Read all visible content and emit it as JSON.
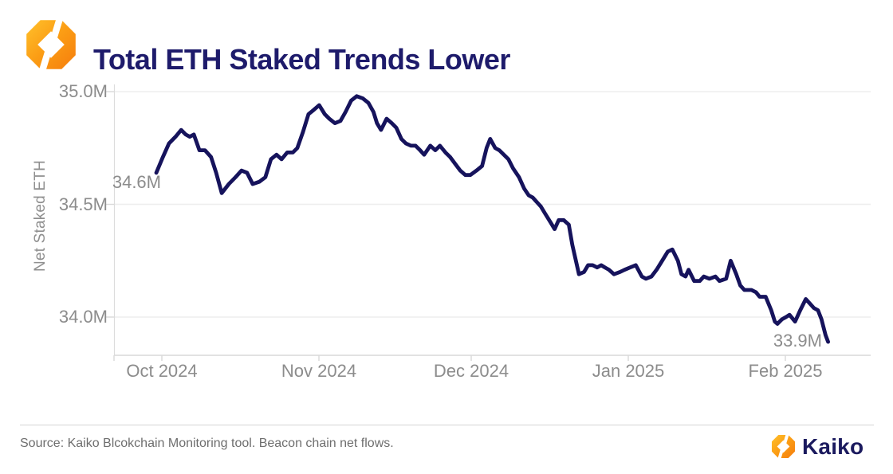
{
  "header": {
    "title": "Total ETH Staked Trends Lower"
  },
  "colors": {
    "title_navy": "#1e1b6b",
    "line_navy": "#16135c",
    "tick_gray": "#8c8c8c",
    "grid_gray": "#eeeeee",
    "axis_gray": "#d9d9d9",
    "brand_orange_light": "#FFC12B",
    "brand_orange_dark": "#F57D0D",
    "brand_navy": "#1b1a5e"
  },
  "chart_data": {
    "type": "line",
    "title": "Total ETH Staked Trends Lower",
    "xlabel": "",
    "ylabel": "Net Staked ETH",
    "x_unit": "days since 2024-09-30",
    "x_tick_labels": [
      "Oct 2024",
      "Nov 2024",
      "Dec 2024",
      "Jan 2025",
      "Feb 2025"
    ],
    "x_tick_days": [
      1,
      32,
      62,
      93,
      124
    ],
    "y_tick_labels": [
      "35.0M",
      "34.5M",
      "34.0M"
    ],
    "y_tick_values": [
      35.0,
      34.5,
      34.0
    ],
    "ylim": [
      33.83,
      35.03
    ],
    "grid": "horizontal",
    "legend": "none",
    "line_color": "#16135c",
    "annotations": [
      {
        "text": "34.6M",
        "day": 0,
        "value": 34.64,
        "position": "left-of-start"
      },
      {
        "text": "33.9M",
        "day": 132.4,
        "value": 33.89,
        "position": "below-left-of-end"
      }
    ],
    "series": [
      {
        "name": "Net Staked ETH (millions)",
        "points": [
          [
            0,
            34.64
          ],
          [
            1.3,
            34.71
          ],
          [
            2.5,
            34.77
          ],
          [
            3.8,
            34.8
          ],
          [
            4.9,
            34.83
          ],
          [
            5.8,
            34.81
          ],
          [
            6.6,
            34.8
          ],
          [
            7.4,
            34.81
          ],
          [
            8.5,
            34.74
          ],
          [
            9.6,
            34.74
          ],
          [
            10.8,
            34.71
          ],
          [
            11.8,
            34.64
          ],
          [
            12.9,
            34.55
          ],
          [
            14.3,
            34.59
          ],
          [
            15.6,
            34.62
          ],
          [
            16.8,
            34.65
          ],
          [
            17.9,
            34.64
          ],
          [
            19,
            34.59
          ],
          [
            20.3,
            34.6
          ],
          [
            21.5,
            34.62
          ],
          [
            22.6,
            34.7
          ],
          [
            23.7,
            34.72
          ],
          [
            24.7,
            34.7
          ],
          [
            25.8,
            34.73
          ],
          [
            26.9,
            34.73
          ],
          [
            27.8,
            34.75
          ],
          [
            28.9,
            34.82
          ],
          [
            30,
            34.9
          ],
          [
            31.1,
            34.92
          ],
          [
            32.1,
            34.94
          ],
          [
            33.2,
            34.9
          ],
          [
            34.1,
            34.88
          ],
          [
            35.2,
            34.86
          ],
          [
            36.3,
            34.87
          ],
          [
            37.3,
            34.91
          ],
          [
            38.4,
            34.96
          ],
          [
            39.5,
            34.98
          ],
          [
            40.7,
            34.97
          ],
          [
            41.8,
            34.95
          ],
          [
            42.8,
            34.91
          ],
          [
            43.5,
            34.86
          ],
          [
            44.3,
            34.83
          ],
          [
            45.4,
            34.88
          ],
          [
            46.4,
            34.86
          ],
          [
            47.3,
            34.84
          ],
          [
            48.3,
            34.79
          ],
          [
            49.2,
            34.77
          ],
          [
            50.2,
            34.76
          ],
          [
            51.1,
            34.76
          ],
          [
            52,
            34.74
          ],
          [
            52.8,
            34.72
          ],
          [
            54,
            34.76
          ],
          [
            55,
            34.74
          ],
          [
            55.9,
            34.76
          ],
          [
            57,
            34.73
          ],
          [
            57.9,
            34.71
          ],
          [
            58.9,
            34.68
          ],
          [
            59.9,
            34.65
          ],
          [
            60.9,
            34.63
          ],
          [
            61.9,
            34.63
          ],
          [
            63.1,
            34.65
          ],
          [
            64.2,
            34.67
          ],
          [
            65.1,
            34.75
          ],
          [
            65.8,
            34.79
          ],
          [
            66.8,
            34.75
          ],
          [
            67.6,
            34.74
          ],
          [
            68.5,
            34.72
          ],
          [
            69.4,
            34.7
          ],
          [
            70.3,
            34.66
          ],
          [
            71.5,
            34.62
          ],
          [
            72.5,
            34.57
          ],
          [
            73.4,
            34.54
          ],
          [
            74.2,
            34.53
          ],
          [
            75,
            34.51
          ],
          [
            75.8,
            34.49
          ],
          [
            76.6,
            34.46
          ],
          [
            77.7,
            34.42
          ],
          [
            78.5,
            34.39
          ],
          [
            79.3,
            34.43
          ],
          [
            80.3,
            34.43
          ],
          [
            81.3,
            34.41
          ],
          [
            82,
            34.32
          ],
          [
            82.7,
            34.25
          ],
          [
            83.3,
            34.19
          ],
          [
            84.3,
            34.2
          ],
          [
            85.1,
            34.23
          ],
          [
            86,
            34.23
          ],
          [
            86.9,
            34.22
          ],
          [
            87.7,
            34.23
          ],
          [
            88.4,
            34.22
          ],
          [
            89.2,
            34.21
          ],
          [
            90.2,
            34.19
          ],
          [
            91.4,
            34.2
          ],
          [
            92.3,
            34.21
          ],
          [
            93.4,
            34.22
          ],
          [
            94.5,
            34.23
          ],
          [
            95.7,
            34.18
          ],
          [
            96.5,
            34.17
          ],
          [
            97.6,
            34.18
          ],
          [
            98.6,
            34.21
          ],
          [
            99.7,
            34.25
          ],
          [
            100.8,
            34.29
          ],
          [
            101.7,
            34.3
          ],
          [
            102.8,
            34.25
          ],
          [
            103.5,
            34.19
          ],
          [
            104.3,
            34.18
          ],
          [
            104.9,
            34.21
          ],
          [
            106,
            34.16
          ],
          [
            107.1,
            34.16
          ],
          [
            107.9,
            34.18
          ],
          [
            109,
            34.17
          ],
          [
            110.2,
            34.18
          ],
          [
            111,
            34.16
          ],
          [
            112.3,
            34.17
          ],
          [
            113.2,
            34.25
          ],
          [
            114.3,
            34.19
          ],
          [
            115.1,
            34.14
          ],
          [
            115.9,
            34.12
          ],
          [
            117.3,
            34.12
          ],
          [
            118.2,
            34.11
          ],
          [
            118.9,
            34.09
          ],
          [
            120.1,
            34.09
          ],
          [
            121.2,
            34.03
          ],
          [
            121.9,
            33.98
          ],
          [
            122.4,
            33.97
          ],
          [
            123.3,
            33.99
          ],
          [
            124.1,
            34.0
          ],
          [
            124.8,
            34.01
          ],
          [
            125.9,
            33.98
          ],
          [
            126.9,
            34.03
          ],
          [
            128,
            34.08
          ],
          [
            128.8,
            34.06
          ],
          [
            129.6,
            34.04
          ],
          [
            130.4,
            34.03
          ],
          [
            131.1,
            33.99
          ],
          [
            131.9,
            33.92
          ],
          [
            132.4,
            33.89
          ]
        ]
      }
    ]
  },
  "footer": {
    "source": "Source: Kaiko Blcokchain Monitoring tool. Beacon chain net flows.",
    "brand": "Kaiko"
  }
}
